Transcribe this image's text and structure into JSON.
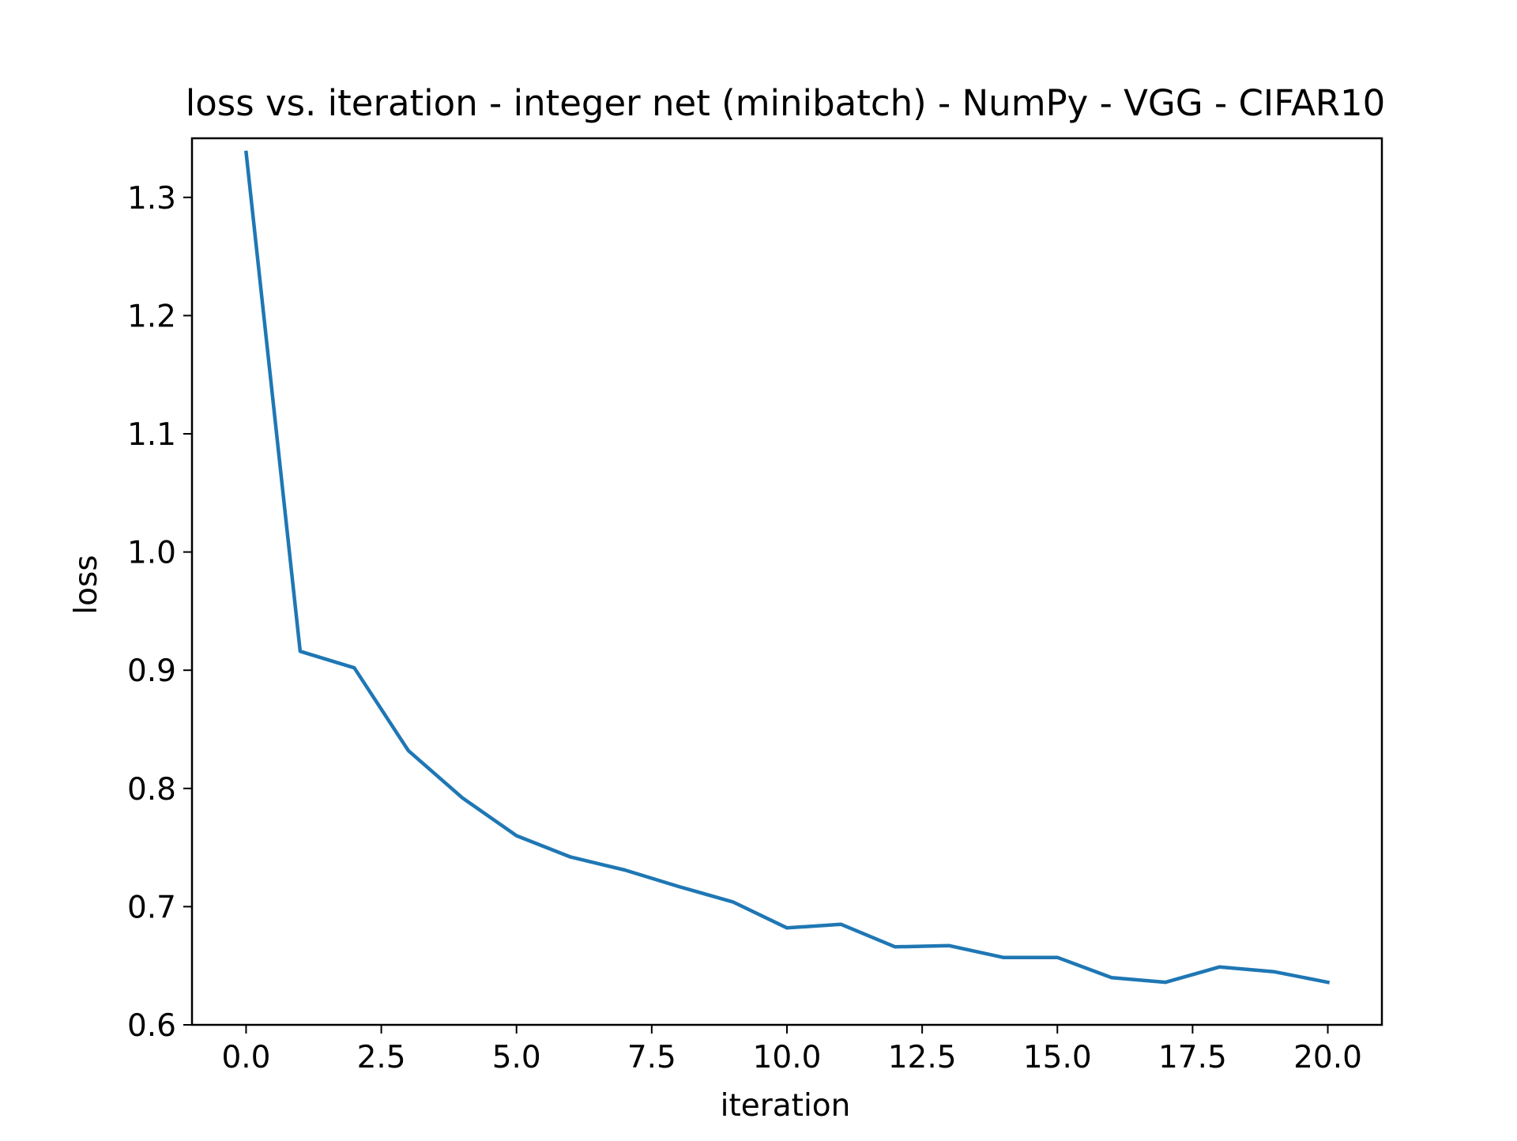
{
  "chart_data": {
    "type": "line",
    "title": "loss vs. iteration - integer net (minibatch) - NumPy - VGG - CIFAR10",
    "xlabel": "iteration",
    "ylabel": "loss",
    "xlim": [
      -1.0,
      21.0
    ],
    "ylim": [
      0.6,
      1.35
    ],
    "x_ticks": [
      0.0,
      2.5,
      5.0,
      7.5,
      10.0,
      12.5,
      15.0,
      17.5,
      20.0
    ],
    "x_tick_labels": [
      "0.0",
      "2.5",
      "5.0",
      "7.5",
      "10.0",
      "12.5",
      "15.0",
      "17.5",
      "20.0"
    ],
    "y_ticks": [
      0.6,
      0.7,
      0.8,
      0.9,
      1.0,
      1.1,
      1.2,
      1.3
    ],
    "y_tick_labels": [
      "0.6",
      "0.7",
      "0.8",
      "0.9",
      "1.0",
      "1.1",
      "1.2",
      "1.3"
    ],
    "grid": false,
    "series": [
      {
        "color": "#1f77b4",
        "x": [
          0,
          1,
          2,
          3,
          4,
          5,
          6,
          7,
          8,
          9,
          10,
          11,
          12,
          13,
          14,
          15,
          16,
          17,
          18,
          19,
          20
        ],
        "y": [
          1.338,
          0.916,
          0.902,
          0.832,
          0.792,
          0.76,
          0.742,
          0.731,
          0.717,
          0.704,
          0.682,
          0.685,
          0.666,
          0.667,
          0.657,
          0.657,
          0.64,
          0.636,
          0.649,
          0.645,
          0.636
        ]
      }
    ]
  }
}
